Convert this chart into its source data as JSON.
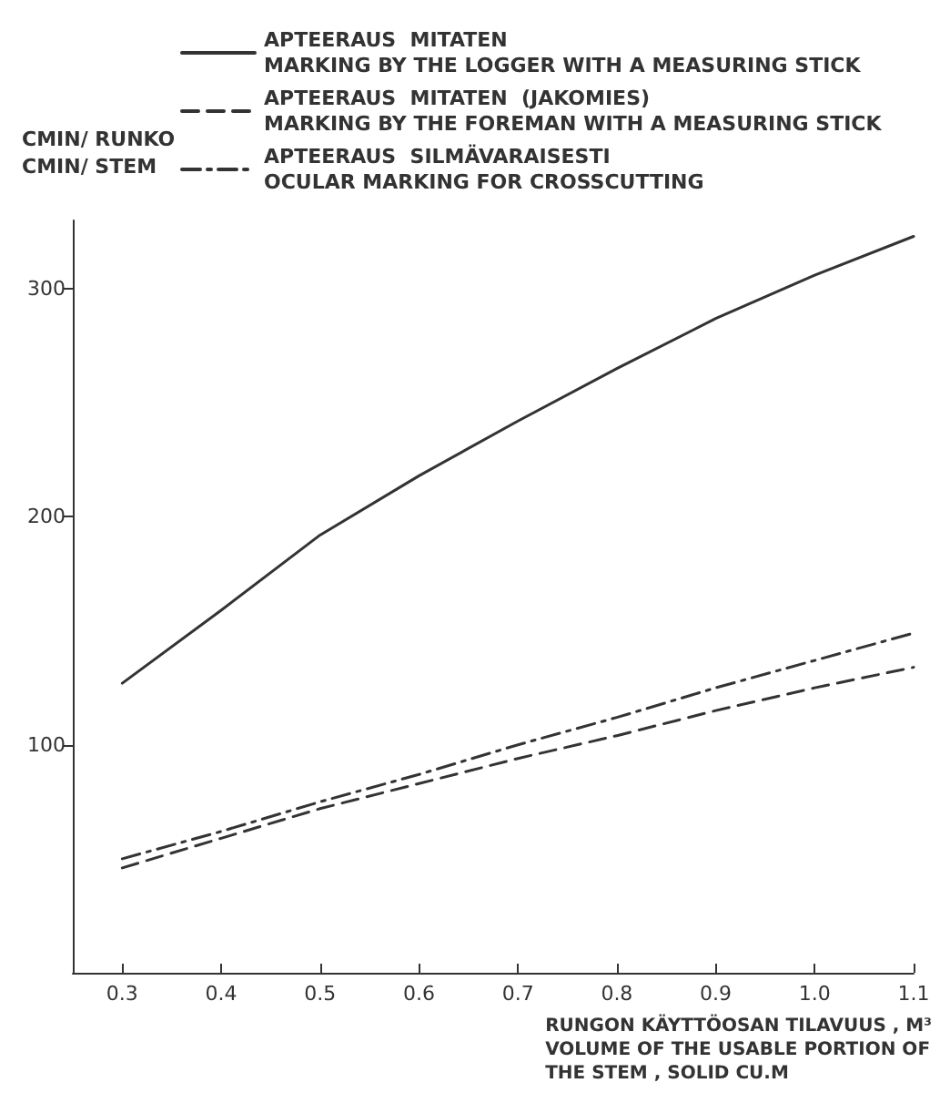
{
  "chart_data": {
    "type": "line",
    "xlabel": "RUNGON KÄYTTÖOSAN TILAVUUS , M³\nVOLUME OF THE USABLE PORTION OF\nTHE STEM , SOLID CU.M",
    "ylabel": "CMIN/ RUNKO\nCMIN/ STEM",
    "x": [
      0.3,
      0.4,
      0.5,
      0.6,
      0.7,
      0.8,
      0.9,
      1.0,
      1.1
    ],
    "series": [
      {
        "name": "APTEERAUS  MITATEN\nMARKING BY THE LOGGER WITH A MEASURING STICK",
        "color": "#333333",
        "line_style": "solid",
        "values": [
          127,
          159,
          192,
          218,
          242,
          265,
          287,
          306,
          323
        ]
      },
      {
        "name": "APTEERAUS  MITATEN  (JAKOMIES)\nMARKING BY THE FOREMAN WITH A MEASURING STICK",
        "color": "#333333",
        "line_style": "dashed",
        "values": [
          46,
          59,
          72,
          83,
          94,
          104,
          115,
          125,
          134
        ]
      },
      {
        "name": "APTEERAUS  SILMÄVARAISESTI\nOCULAR MARKING FOR CROSSCUTTING",
        "color": "#333333",
        "line_style": "dashdot",
        "values": [
          50,
          62,
          75,
          87,
          100,
          112,
          125,
          137,
          149
        ]
      }
    ],
    "xlim": [
      0.25,
      1.1
    ],
    "xticks": [
      {
        "value": 0.3,
        "label": "0.3"
      },
      {
        "value": 0.4,
        "label": "0.4"
      },
      {
        "value": 0.5,
        "label": "0.5"
      },
      {
        "value": 0.6,
        "label": "0.6"
      },
      {
        "value": 0.7,
        "label": "0.7"
      },
      {
        "value": 0.8,
        "label": "0.8"
      },
      {
        "value": 0.9,
        "label": "0.9"
      },
      {
        "value": 1.0,
        "label": "1.0"
      },
      {
        "value": 1.1,
        "label": "1.1"
      }
    ],
    "ylim": [
      0,
      330
    ],
    "yticks": [
      100,
      200,
      300
    ],
    "grid": false,
    "legend": "top",
    "marker": "none"
  }
}
